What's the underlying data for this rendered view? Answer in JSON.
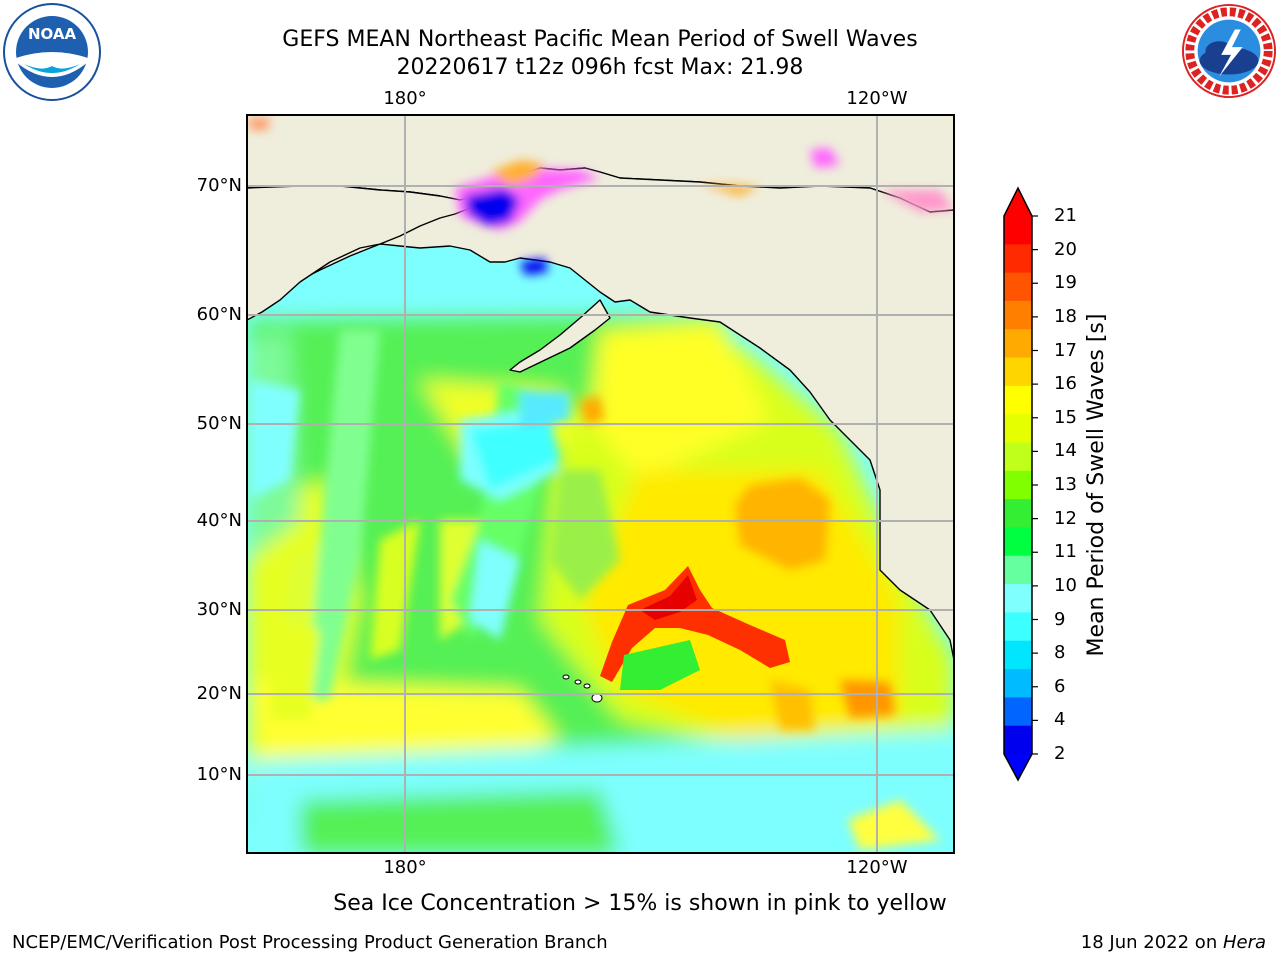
{
  "title_line1": "GEFS MEAN Northeast Pacific Mean Period of Swell Waves",
  "title_line2": "20220617 t12z 096h fcst   Max: 21.98",
  "logos": {
    "left": "noaa-logo",
    "left_text": "NOAA",
    "right": "nws-logo"
  },
  "map": {
    "lat_labels": [
      "70°N",
      "60°N",
      "50°N",
      "40°N",
      "30°N",
      "20°N",
      "10°N"
    ],
    "lon_labels_top": [
      "180°",
      "120°W"
    ],
    "lon_labels_bottom": [
      "180°",
      "120°W"
    ],
    "land_color": "#efeedc",
    "ocean_base_color": "#7dffff",
    "grid_color": "#b0b0b0"
  },
  "colorbar": {
    "label": "Mean Period of Swell Waves [s]",
    "ticks": [
      "21",
      "20",
      "19",
      "18",
      "17",
      "16",
      "15",
      "14",
      "13",
      "12",
      "11",
      "10",
      "9",
      "8",
      "6",
      "4",
      "2"
    ],
    "colors": [
      "#ff0000",
      "#ff2a00",
      "#ff5500",
      "#ff8000",
      "#ffaa00",
      "#ffd500",
      "#ffff00",
      "#e5ff00",
      "#bfff19",
      "#80ff00",
      "#33ee33",
      "#00ff40",
      "#66ffa0",
      "#80ffff",
      "#3cffff",
      "#00e6ff",
      "#00bbff",
      "#0066ff",
      "#0000ee"
    ],
    "under_color": "#0000ff",
    "over_color": "#ff0000"
  },
  "caption": "Sea Ice Concentration > 15% is shown in pink to yellow",
  "footer_left": "NCEP/EMC/Verification Post Processing Product Generation Branch",
  "footer_right_date": "18 Jun 2022 on ",
  "footer_right_host": "Hera"
}
